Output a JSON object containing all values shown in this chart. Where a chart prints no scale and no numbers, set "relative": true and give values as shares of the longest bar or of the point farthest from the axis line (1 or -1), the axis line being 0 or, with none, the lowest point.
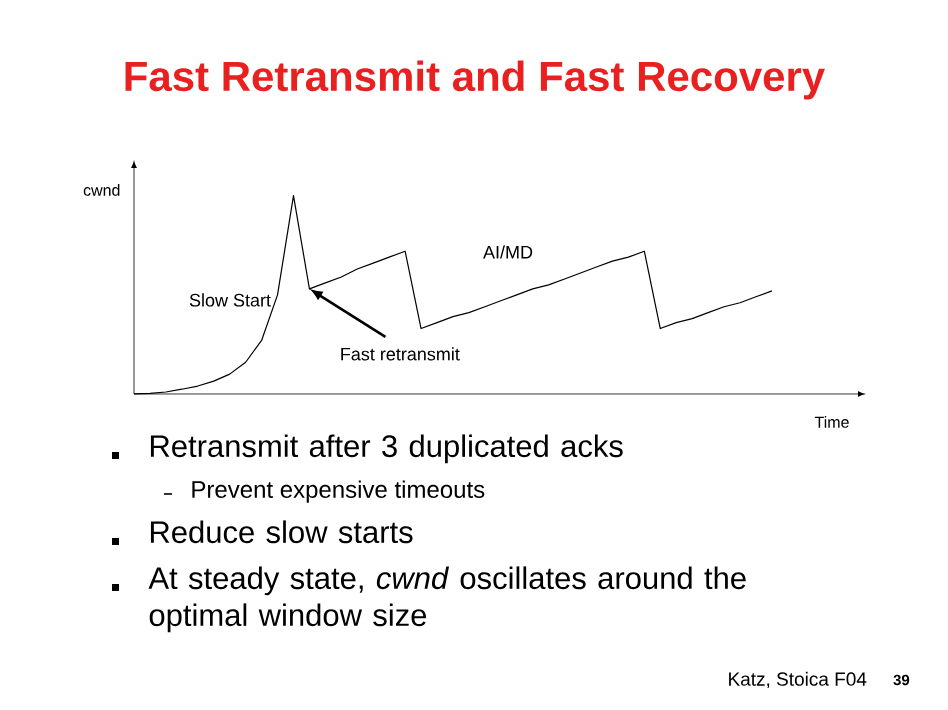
{
  "chart_data": {
    "type": "line",
    "title": "Fast Retransmit and Fast Recovery",
    "xlabel": "Time",
    "ylabel": "cwnd",
    "relative": true,
    "tick_labels": false,
    "marker": "none",
    "line_style": "solid",
    "categories": [
      null,
      null,
      null,
      null,
      null,
      null,
      null,
      null,
      null,
      null,
      null,
      null,
      null,
      null,
      null,
      null,
      null,
      null,
      null,
      null,
      null,
      null,
      null,
      null,
      null,
      null,
      null,
      null,
      null,
      null,
      null,
      null,
      null,
      null,
      null,
      null,
      null,
      null,
      null,
      null,
      null
    ],
    "series": [
      {
        "color": "#000000",
        "values": [
          0,
          0.003,
          0.01,
          0.024,
          0.04,
          0.065,
          0.1,
          0.16,
          0.27,
          0.5,
          1.0,
          0.53,
          0.56,
          0.59,
          0.63,
          0.66,
          0.69,
          0.72,
          0.33,
          0.36,
          0.39,
          0.41,
          0.44,
          0.47,
          0.5,
          0.53,
          0.55,
          0.58,
          0.61,
          0.64,
          0.67,
          0.69,
          0.72,
          0.33,
          0.36,
          0.38,
          0.41,
          0.44,
          0.46,
          0.49,
          0.52
        ]
      }
    ],
    "annotations": [
      "Slow Start",
      "AI/MD",
      "Fast retransmit",
      "Retransmit after 3 duplicated acks",
      "Prevent expensive timeouts",
      "Reduce slow starts",
      "At steady state, *cwnd* oscillates around the optimal window size",
      "Katz, Stoica F04",
      "**39**"
    ]
  }
}
